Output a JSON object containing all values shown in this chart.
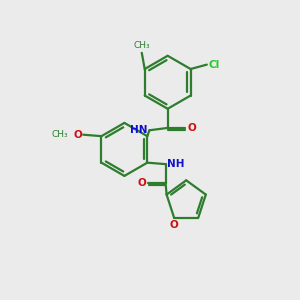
{
  "bg_color": "#ebebeb",
  "bond_color": "#2e7d2e",
  "N_color": "#1010cc",
  "O_color": "#cc1010",
  "Cl_color": "#22cc22",
  "line_width": 1.6,
  "figsize": [
    3.0,
    3.0
  ],
  "dpi": 100,
  "xlim": [
    0,
    10
  ],
  "ylim": [
    0,
    10
  ]
}
